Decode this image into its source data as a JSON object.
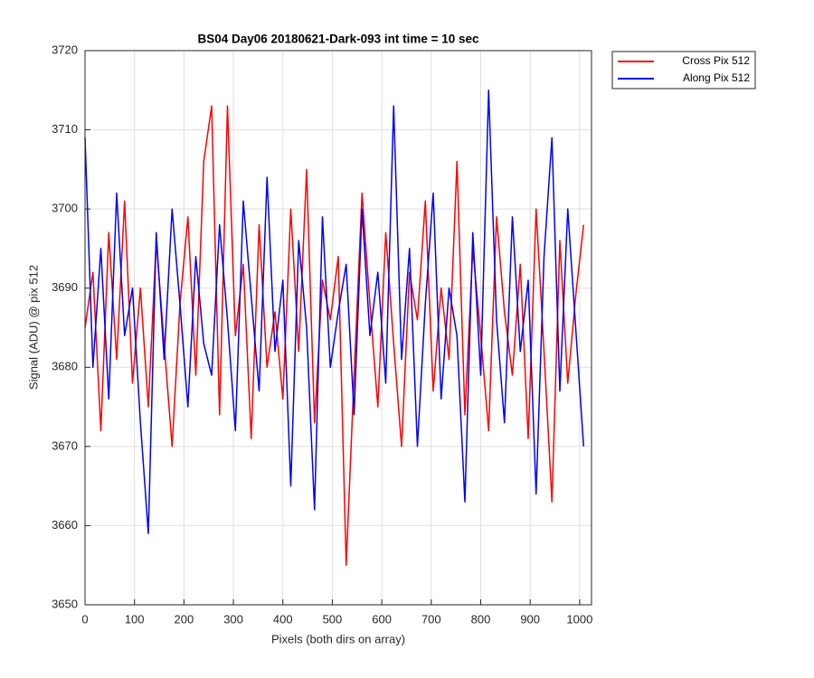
{
  "chart_data": {
    "type": "line",
    "title": "BS04 Day06 20180621-Dark-093 int time = 10 sec",
    "xlabel": "Pixels (both dirs on array)",
    "ylabel": "Signal (ADU) @ pix 512",
    "x": [
      0,
      16,
      32,
      48,
      64,
      80,
      96,
      112,
      128,
      144,
      160,
      176,
      192,
      208,
      224,
      240,
      256,
      272,
      288,
      304,
      320,
      336,
      352,
      368,
      384,
      400,
      416,
      432,
      448,
      464,
      480,
      496,
      512,
      528,
      544,
      560,
      576,
      592,
      608,
      624,
      640,
      656,
      672,
      688,
      704,
      720,
      736,
      752,
      768,
      784,
      800,
      816,
      832,
      848,
      864,
      880,
      896,
      912,
      928,
      944,
      960,
      976,
      992,
      1008
    ],
    "series": [
      {
        "name": "Cross Pix 512",
        "color": "#ff0000",
        "values": [
          3685,
          3692,
          3672,
          3697,
          3681,
          3701,
          3678,
          3690,
          3675,
          3696,
          3683,
          3670,
          3688,
          3699,
          3679,
          3706,
          3713,
          3674,
          3713,
          3684,
          3693,
          3671,
          3698,
          3680,
          3687,
          3676,
          3700,
          3682,
          3705,
          3673,
          3691,
          3686,
          3694,
          3655,
          3679,
          3702,
          3688,
          3675,
          3697,
          3683,
          3670,
          3692,
          3686,
          3701,
          3677,
          3690,
          3681,
          3706,
          3674,
          3695,
          3684,
          3672,
          3699,
          3687,
          3679,
          3693,
          3671,
          3700,
          3682,
          3663,
          3696,
          3678,
          3689,
          3698
        ]
      },
      {
        "name": "Along Pix 512",
        "color": "#0000ff",
        "values": [
          3709,
          3680,
          3695,
          3676,
          3702,
          3684,
          3690,
          3673,
          3659,
          3697,
          3681,
          3700,
          3688,
          3675,
          3694,
          3683,
          3679,
          3698,
          3686,
          3672,
          3701,
          3689,
          3677,
          3704,
          3682,
          3691,
          3665,
          3696,
          3685,
          3662,
          3699,
          3680,
          3687,
          3693,
          3674,
          3700,
          3684,
          3692,
          3678,
          3713,
          3681,
          3695,
          3670,
          3688,
          3702,
          3676,
          3690,
          3684,
          3663,
          3697,
          3679,
          3715,
          3686,
          3673,
          3699,
          3682,
          3691,
          3664,
          3694,
          3709,
          3677,
          3700,
          3685,
          3670
        ]
      }
    ],
    "xlim": [
      0,
      1024
    ],
    "xticks": [
      0,
      100,
      200,
      300,
      400,
      500,
      600,
      700,
      800,
      900,
      1000
    ],
    "ylim": [
      3650,
      3720
    ],
    "yticks": [
      3650,
      3660,
      3670,
      3680,
      3690,
      3700,
      3710,
      3720
    ],
    "grid": true,
    "legend": "northeastoutside"
  }
}
